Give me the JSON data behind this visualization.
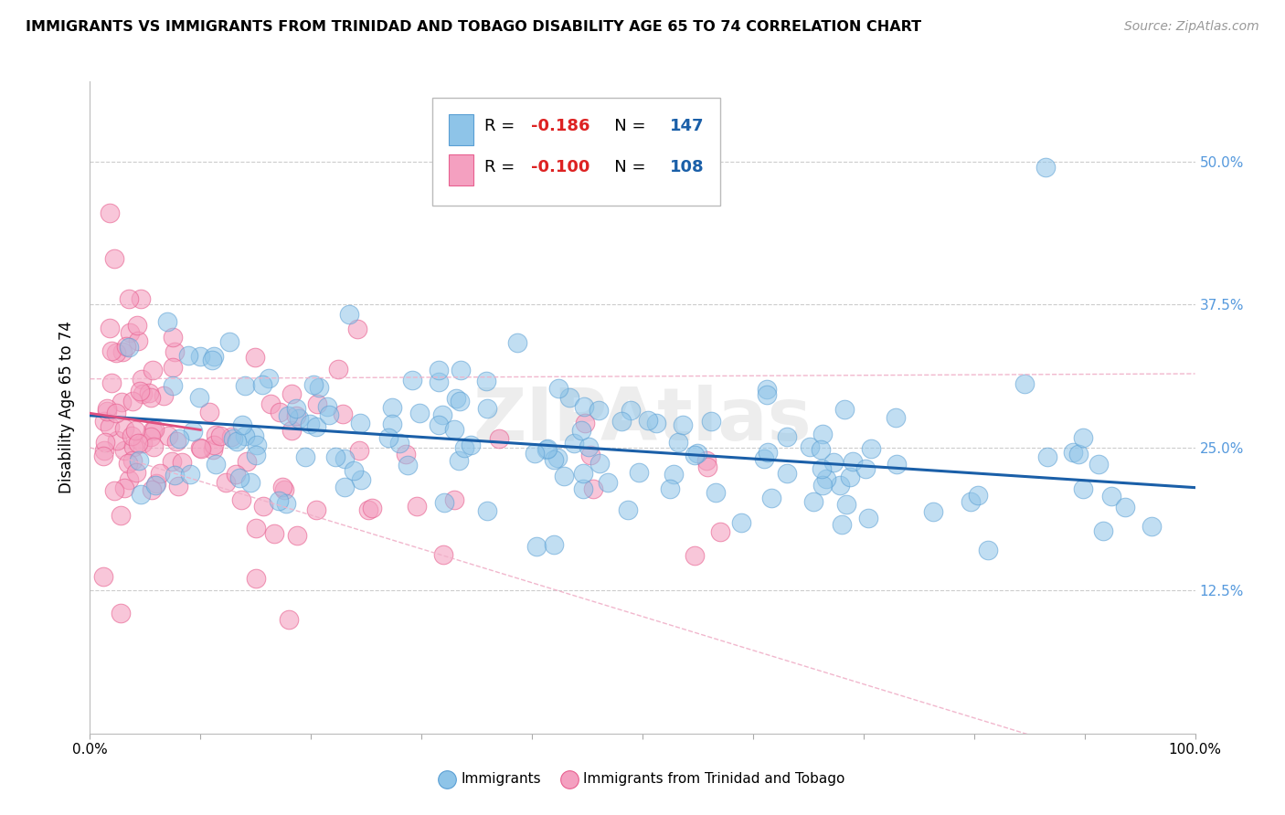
{
  "title": "IMMIGRANTS VS IMMIGRANTS FROM TRINIDAD AND TOBAGO DISABILITY AGE 65 TO 74 CORRELATION CHART",
  "source": "Source: ZipAtlas.com",
  "ylabel": "Disability Age 65 to 74",
  "ytick_vals": [
    0.125,
    0.25,
    0.375,
    0.5
  ],
  "ytick_labels": [
    "12.5%",
    "25.0%",
    "37.5%",
    "50.0%"
  ],
  "legend1_R": "-0.186",
  "legend1_N": "147",
  "legend2_R": "-0.100",
  "legend2_N": "108",
  "blue_color": "#8ec4e8",
  "blue_edge": "#5a9fd4",
  "pink_color": "#f4a0c0",
  "pink_edge": "#e86090",
  "blue_line_color": "#1a5fa8",
  "pink_line_color": "#e05080",
  "pink_conf_color": "#f0b0c8",
  "xlim": [
    0.0,
    1.0
  ],
  "ylim": [
    0.0,
    0.57
  ],
  "watermark": "ZIPAtlas",
  "blue_trend_y0": 0.278,
  "blue_trend_y1": 0.215,
  "pink_trend_x0": 0.0,
  "pink_trend_y0": 0.28,
  "pink_trend_x1": 0.55,
  "pink_trend_y1": 0.2
}
